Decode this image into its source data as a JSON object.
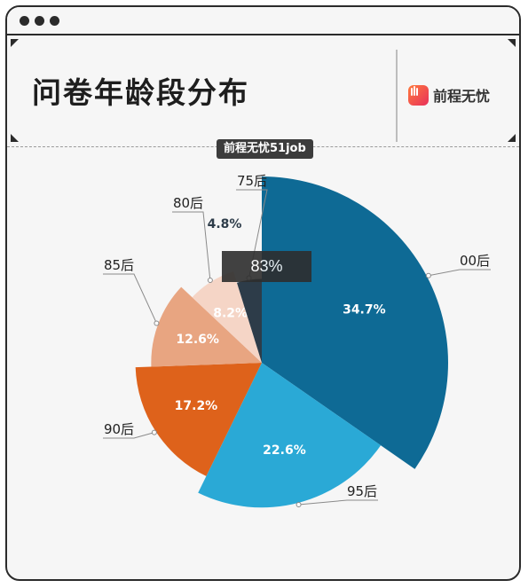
{
  "window": {
    "title": "问卷年龄段分布"
  },
  "logo": {
    "text": "前程无忧"
  },
  "badge": {
    "text": "前程无忧51job"
  },
  "overlay": {
    "text": "83%"
  },
  "colors": {
    "00后": "#0e6a95",
    "95后": "#2aa9d6",
    "90后": "#de621b",
    "85后": "#e8a581",
    "80后": "#f5d5c6",
    "75后": "#2d3c49"
  },
  "chart_data": {
    "type": "pie",
    "title": "问卷年龄段分布",
    "categories": [
      "00后",
      "95后",
      "90后",
      "85后",
      "80后",
      "75后"
    ],
    "values": [
      34.7,
      22.6,
      17.2,
      12.6,
      8.2,
      4.8
    ],
    "labels": [
      "34.7%",
      "22.6%",
      "17.2%",
      "12.6%",
      "8.2%",
      "4.8%"
    ]
  }
}
